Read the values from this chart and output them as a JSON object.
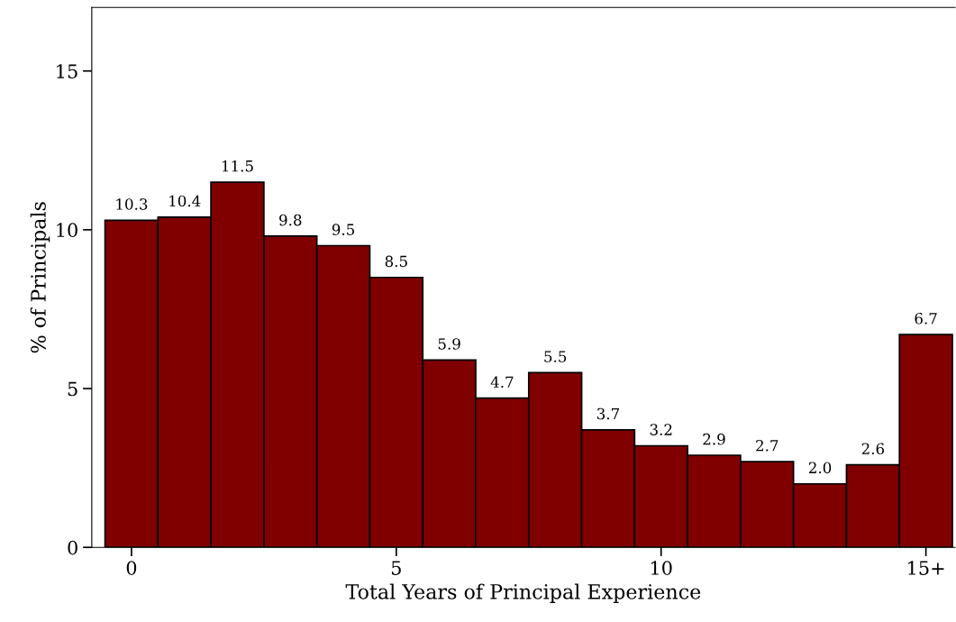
{
  "chart_data": {
    "type": "bar",
    "xlabel": "Total Years of Principal Experience",
    "ylabel": "% of Principals",
    "x": [
      0,
      1,
      2,
      3,
      4,
      5,
      6,
      7,
      8,
      9,
      10,
      11,
      12,
      13,
      14,
      15
    ],
    "values": [
      10.3,
      10.4,
      11.5,
      9.8,
      9.5,
      8.5,
      5.9,
      4.7,
      5.5,
      3.7,
      3.2,
      2.9,
      2.7,
      2.0,
      2.6,
      6.7
    ],
    "value_labels": [
      "10.3",
      "10.4",
      "11.5",
      "9.8",
      "9.5",
      "8.5",
      "5.9",
      "4.7",
      "5.5",
      "3.7",
      "3.2",
      "2.9",
      "2.7",
      "2.0",
      "2.6",
      "6.7"
    ],
    "color": "#800000",
    "xlim": [
      -0.75,
      15.55
    ],
    "xticks": [
      0,
      5,
      10,
      {
        "value": 15,
        "label": "15+"
      }
    ],
    "ylim": [
      0,
      17
    ],
    "yticks": [
      0,
      5,
      10,
      15
    ],
    "grid": false,
    "legend": false
  }
}
